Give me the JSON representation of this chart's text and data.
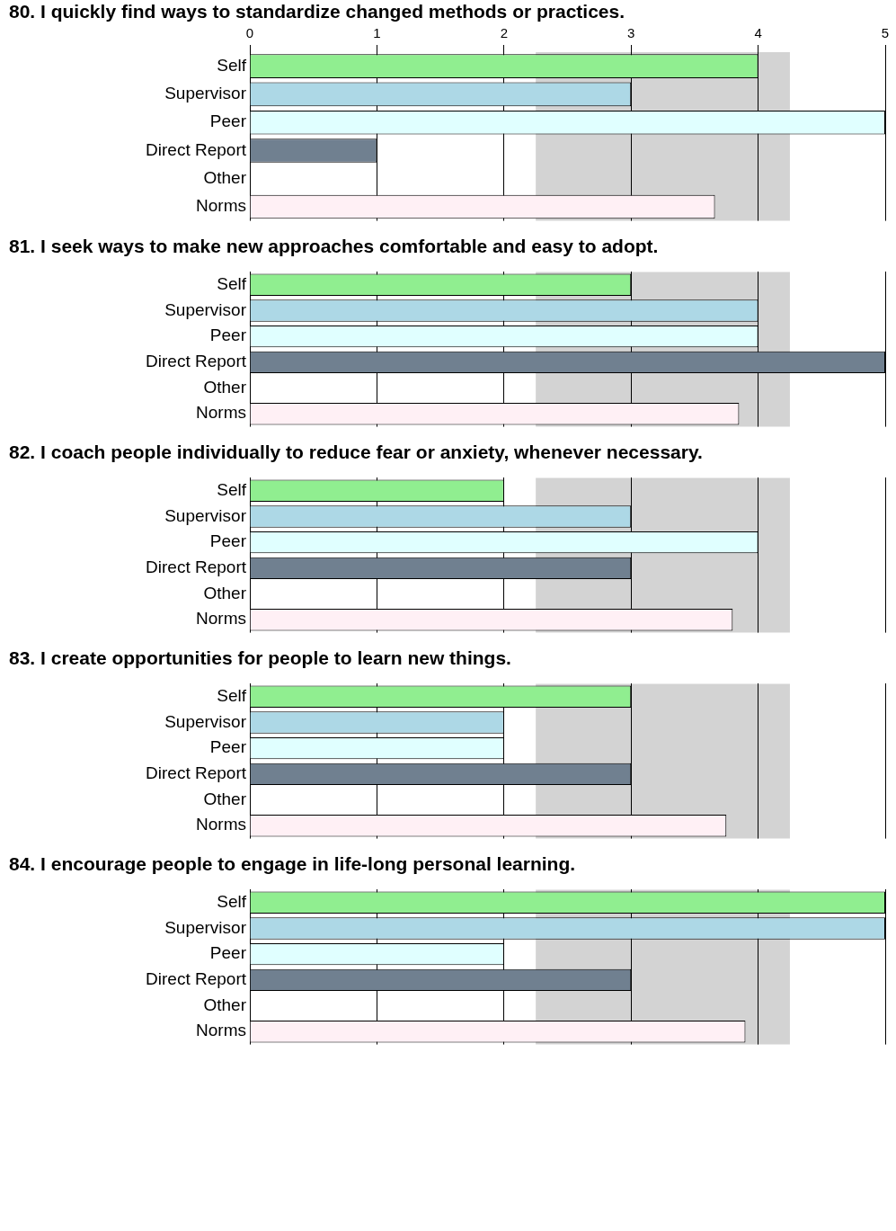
{
  "chart_data": [
    {
      "type": "bar",
      "orientation": "horizontal",
      "title": "80. I quickly find ways to standardize changed methods or practices.",
      "categories": [
        "Self",
        "Supervisor",
        "Peer",
        "Direct Report",
        "Other",
        "Norms"
      ],
      "values": [
        4,
        3,
        5,
        1,
        0,
        3.66
      ],
      "colors": [
        "#90ee90",
        "#add8e6",
        "#e0ffff",
        "#708090",
        "#ffffff",
        "#fff0f5"
      ],
      "xlim": [
        0,
        5
      ],
      "xticks": [
        0,
        1,
        2,
        3,
        4,
        5
      ],
      "grid": "x",
      "legend": false,
      "bands": [
        {
          "axis": "x",
          "from": 2.25,
          "to": 4.25,
          "color": "#d3d3d3"
        }
      ]
    },
    {
      "type": "bar",
      "orientation": "horizontal",
      "title": "81. I seek ways to make new approaches comfortable and easy to adopt.",
      "categories": [
        "Self",
        "Supervisor",
        "Peer",
        "Direct Report",
        "Other",
        "Norms"
      ],
      "values": [
        3,
        4,
        4,
        5,
        0,
        3.85
      ],
      "colors": [
        "#90ee90",
        "#add8e6",
        "#e0ffff",
        "#708090",
        "#ffffff",
        "#fff0f5"
      ],
      "xlim": [
        0,
        5
      ],
      "xticks": [
        0,
        1,
        2,
        3,
        4,
        5
      ],
      "grid": "x",
      "legend": false,
      "tick_labels": "y",
      "bands": [
        {
          "axis": "x",
          "from": 2.25,
          "to": 4.25,
          "color": "#d3d3d3"
        }
      ]
    },
    {
      "type": "bar",
      "orientation": "horizontal",
      "title": "82. I coach people individually to reduce fear or anxiety, whenever necessary.",
      "categories": [
        "Self",
        "Supervisor",
        "Peer",
        "Direct Report",
        "Other",
        "Norms"
      ],
      "values": [
        2,
        3,
        4,
        3,
        0,
        3.8
      ],
      "colors": [
        "#90ee90",
        "#add8e6",
        "#e0ffff",
        "#708090",
        "#ffffff",
        "#fff0f5"
      ],
      "xlim": [
        0,
        5
      ],
      "xticks": [
        0,
        1,
        2,
        3,
        4,
        5
      ],
      "grid": "x",
      "legend": false,
      "tick_labels": "y",
      "bands": [
        {
          "axis": "x",
          "from": 2.25,
          "to": 4.25,
          "color": "#d3d3d3"
        }
      ]
    },
    {
      "type": "bar",
      "orientation": "horizontal",
      "title": "83. I create opportunities for people to learn new things.",
      "categories": [
        "Self",
        "Supervisor",
        "Peer",
        "Direct Report",
        "Other",
        "Norms"
      ],
      "values": [
        3,
        2,
        2,
        3,
        0,
        3.75
      ],
      "colors": [
        "#90ee90",
        "#add8e6",
        "#e0ffff",
        "#708090",
        "#ffffff",
        "#fff0f5"
      ],
      "xlim": [
        0,
        5
      ],
      "xticks": [
        0,
        1,
        2,
        3,
        4,
        5
      ],
      "grid": "x",
      "legend": false,
      "tick_labels": "y",
      "bands": [
        {
          "axis": "x",
          "from": 2.25,
          "to": 4.25,
          "color": "#d3d3d3"
        }
      ]
    },
    {
      "type": "bar",
      "orientation": "horizontal",
      "title": "84. I encourage people to engage in life-long personal learning.",
      "categories": [
        "Self",
        "Supervisor",
        "Peer",
        "Direct Report",
        "Other",
        "Norms"
      ],
      "values": [
        5,
        5,
        2,
        3,
        0,
        3.9
      ],
      "colors": [
        "#90ee90",
        "#add8e6",
        "#e0ffff",
        "#708090",
        "#ffffff",
        "#fff0f5"
      ],
      "xlim": [
        0,
        5
      ],
      "xticks": [
        0,
        1,
        2,
        3,
        4,
        5
      ],
      "grid": "x",
      "legend": false,
      "tick_labels": "y",
      "bands": [
        {
          "axis": "x",
          "from": 2.25,
          "to": 4.25,
          "color": "#d3d3d3"
        }
      ]
    }
  ]
}
